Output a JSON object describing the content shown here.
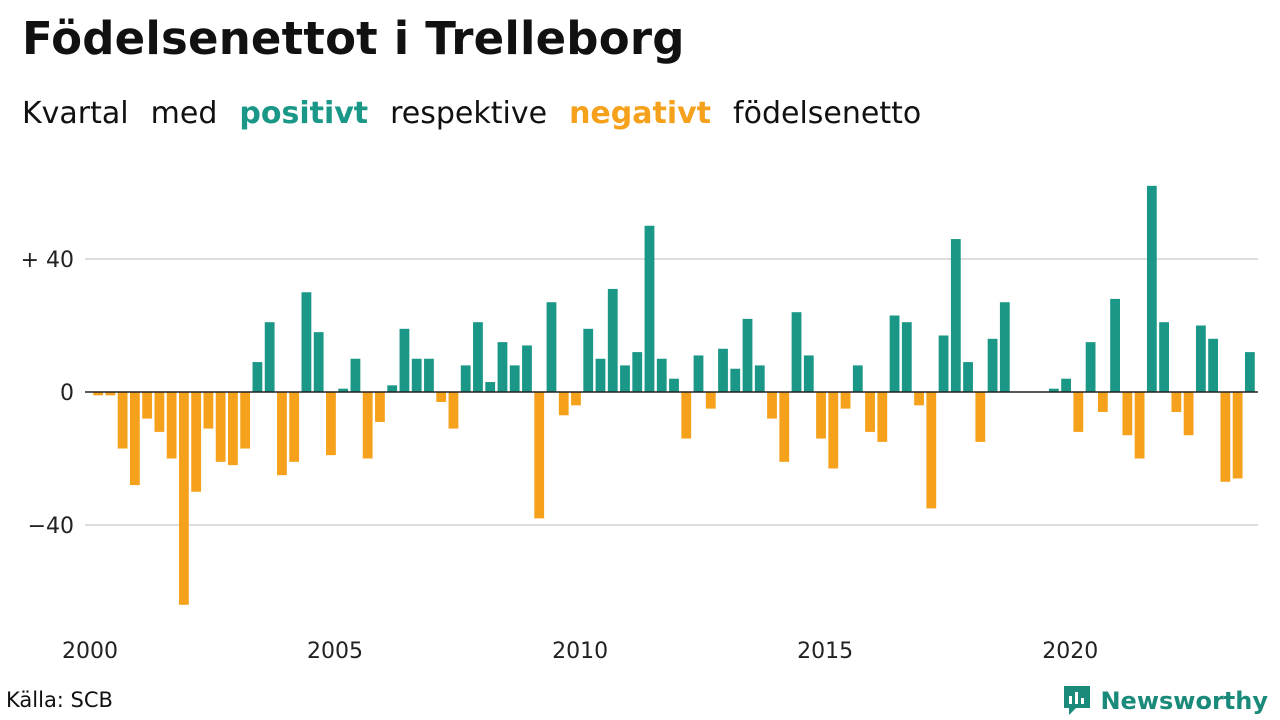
{
  "title": "Födelsenettot i Trelleborg",
  "subtitle": {
    "part1": "Kvartal",
    "part2": "med",
    "positive": "positivt",
    "part3": "respektive",
    "negative": "negativt",
    "part4": "födelsenetto"
  },
  "source": "Källa: SCB",
  "brand": {
    "name": "Newsworthy",
    "icon": "newsworthy-logo-icon"
  },
  "colors": {
    "positive": "#1a9787",
    "negative": "#f5a11b",
    "brand": "#1a8a7a",
    "grid": "#dddddd"
  },
  "chart_data": {
    "type": "bar",
    "x_start": 2000.0,
    "x_step": 0.25,
    "values": [
      -1,
      -1,
      -17,
      -28,
      -8,
      -12,
      -20,
      -64,
      -30,
      -11,
      -21,
      -22,
      -17,
      9,
      21,
      -25,
      -21,
      30,
      18,
      -19,
      1,
      10,
      -20,
      -9,
      2,
      19,
      10,
      10,
      -3,
      -11,
      8,
      21,
      3,
      15,
      8,
      14,
      -38,
      27,
      -7,
      -4,
      19,
      10,
      31,
      8,
      12,
      50,
      10,
      4,
      -14,
      11,
      -5,
      13,
      7,
      22,
      8,
      -8,
      -21,
      24,
      11,
      -14,
      -23,
      -5,
      8,
      -12,
      -15,
      23,
      21,
      -4,
      -35,
      17,
      46,
      9,
      -15,
      16,
      27,
      0,
      0,
      0,
      1,
      4,
      -12,
      15,
      -6,
      28,
      -13,
      -20,
      62,
      21,
      -6,
      -13,
      20,
      16,
      -27,
      -26,
      12
    ],
    "xlim": [
      2000,
      2023.75
    ],
    "ylim": [
      -64,
      62
    ],
    "y_ticks": [
      40,
      0,
      -40
    ],
    "y_tick_labels": [
      "+ 40",
      "0",
      "−40"
    ],
    "x_ticks": [
      2000,
      2005,
      2010,
      2015,
      2020
    ],
    "x_tick_labels": [
      "2000",
      "2005",
      "2010",
      "2015",
      "2020"
    ],
    "grid": true,
    "legend": "in subtitle"
  }
}
